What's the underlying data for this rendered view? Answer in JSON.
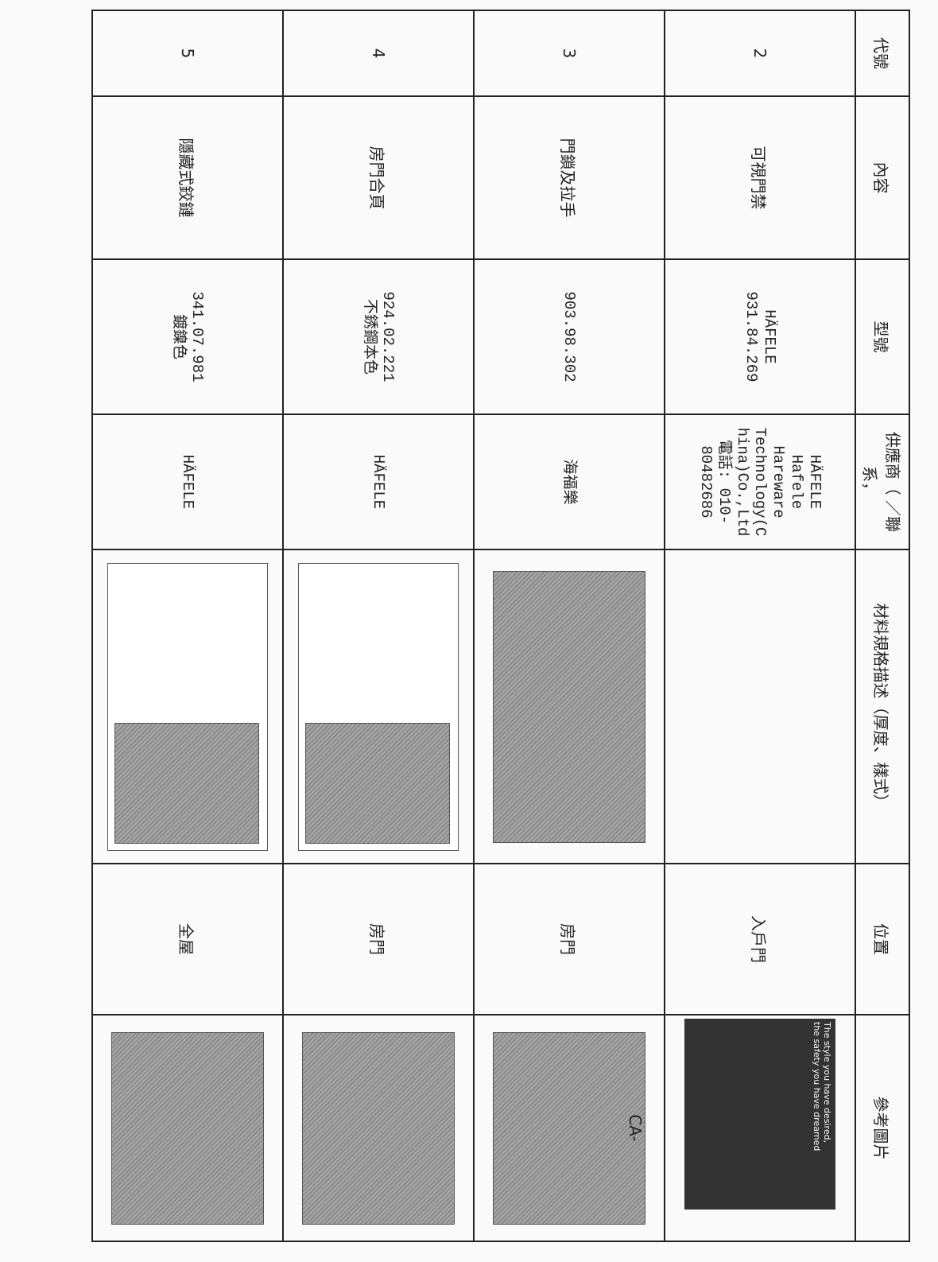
{
  "table": {
    "header": [
      "代號",
      "內容",
      "型號",
      "供應商（ ／聯系，",
      "材料規格描述（厚度、樣式）",
      "位置",
      "參考圖片"
    ],
    "rows": [
      {
        "code": "2",
        "content": "可視門禁",
        "model": [
          "HÄFELE",
          "931.84.269"
        ],
        "supplier": [
          "HÄFELE",
          "Hafele",
          "Hareware",
          "Technology(C",
          "hina)Co.,Ltd",
          "電話: 010-",
          "80482686"
        ],
        "location": "入戶門",
        "image_caption": [
          "The style you have desired,",
          "the safety you have dreamed"
        ]
      },
      {
        "code": "3",
        "content": "門鎖及拉手",
        "model": [
          "903.98.302"
        ],
        "supplier": [
          "海福樂"
        ],
        "location": "房門",
        "image_caption": [
          "CA-"
        ]
      },
      {
        "code": "4",
        "content": "房門合頁",
        "model": [
          "924.02.221",
          "不銹鋼本色"
        ],
        "supplier": [
          "HÄFELE"
        ],
        "location": "房門"
      },
      {
        "code": "5",
        "content": "隱藏式鉸鏈",
        "model": [
          "341.07.981",
          "鍍鎳色"
        ],
        "supplier": [
          "HÄFELE"
        ],
        "location": "全屋"
      }
    ]
  }
}
